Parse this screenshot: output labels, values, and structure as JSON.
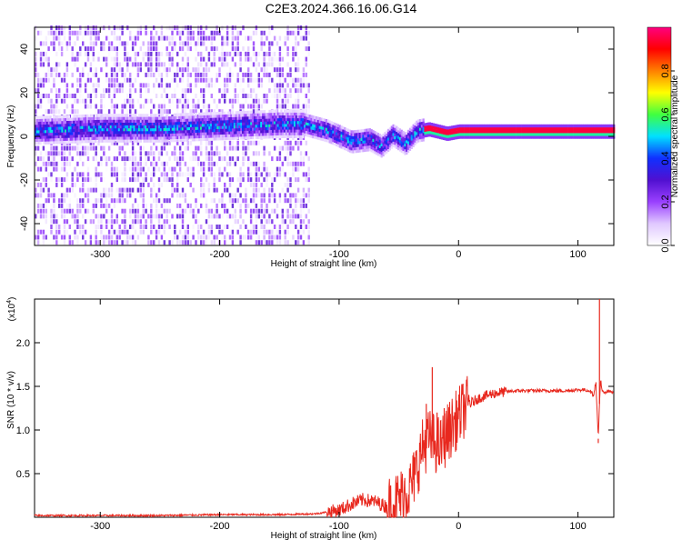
{
  "figure_title": "C2E3.2024.366.16.06.G14",
  "chart_data": [
    {
      "type": "heatmap",
      "title": "C2E3.2024.366.16.06.G14",
      "xlabel": "Height of straight line (km)",
      "ylabel": "Frequency (Hz)",
      "xlim": [
        -355,
        130
      ],
      "ylim": [
        -50,
        50
      ],
      "x_ticks": [
        -300,
        -200,
        -100,
        0,
        100
      ],
      "y_ticks": [
        -40,
        -20,
        0,
        20,
        40
      ],
      "x_tick_labels": [
        "-300",
        "-200",
        "-100",
        "0",
        "100"
      ],
      "y_tick_labels": [
        "-40",
        "-20",
        "0",
        "20",
        "40"
      ],
      "colorbar": {
        "label": "Normalized spectral amplitude",
        "range": [
          0,
          1
        ],
        "ticks": [
          0.0,
          0.2,
          0.4,
          0.6,
          0.8
        ],
        "tick_labels": [
          "0.0",
          "0.2",
          "0.4",
          "0.6",
          "0.8"
        ],
        "colormap": [
          "#ffffff",
          "#e0c8ff",
          "#9a40ff",
          "#5010d0",
          "#1030ff",
          "#00e0ff",
          "#40ff40",
          "#ffff00",
          "#ff8000",
          "#ff0000",
          "#ff0080"
        ]
      },
      "ridge": {
        "description": "main spectral ridge",
        "points": [
          {
            "x": -355,
            "y": 2
          },
          {
            "x": -300,
            "y": 3
          },
          {
            "x": -250,
            "y": 3
          },
          {
            "x": -200,
            "y": 4
          },
          {
            "x": -150,
            "y": 5
          },
          {
            "x": -130,
            "y": 5
          },
          {
            "x": -110,
            "y": 2
          },
          {
            "x": -90,
            "y": -3
          },
          {
            "x": -75,
            "y": -2
          },
          {
            "x": -65,
            "y": -5
          },
          {
            "x": -55,
            "y": 0
          },
          {
            "x": -45,
            "y": -4
          },
          {
            "x": -35,
            "y": 2
          },
          {
            "x": -25,
            "y": 3
          },
          {
            "x": -10,
            "y": 1
          },
          {
            "x": 0,
            "y": 2
          },
          {
            "x": 20,
            "y": 2
          },
          {
            "x": 60,
            "y": 2
          },
          {
            "x": 90,
            "y": 2
          },
          {
            "x": 110,
            "y": 2
          },
          {
            "x": 130,
            "y": 2
          }
        ]
      },
      "noise_region_x": [
        -355,
        -125
      ]
    },
    {
      "type": "line",
      "xlabel": "Height of straight line (km)",
      "ylabel": "SNR (10 * v/v)",
      "y_multiplier_label": "(x10",
      "y_multiplier_exp": "4",
      "xlim": [
        -355,
        130
      ],
      "ylim": [
        0,
        2.5
      ],
      "x_ticks": [
        -300,
        -200,
        -100,
        0,
        100
      ],
      "y_ticks": [
        0.5,
        1.0,
        1.5,
        2.0
      ],
      "x_tick_labels": [
        "-300",
        "-200",
        "-100",
        "0",
        "100"
      ],
      "y_tick_labels": [
        "0.5",
        "1.0",
        "1.5",
        "2.0"
      ],
      "series": [
        {
          "color": "#e8281e",
          "x": [
            -355,
            -300,
            -250,
            -200,
            -150,
            -120,
            -100,
            -90,
            -80,
            -70,
            -60,
            -50,
            -40,
            -35,
            -30,
            -25,
            -20,
            -15,
            -10,
            -5,
            0,
            5,
            10,
            15,
            20,
            25,
            30,
            35,
            40,
            50,
            60,
            70,
            80,
            90,
            100,
            105,
            110,
            113,
            115,
            117,
            118,
            119,
            120,
            122,
            125,
            130
          ],
          "y": [
            0.02,
            0.02,
            0.02,
            0.03,
            0.03,
            0.04,
            0.08,
            0.15,
            0.2,
            0.18,
            0.12,
            0.2,
            0.35,
            0.55,
            0.8,
            0.9,
            0.85,
            0.8,
            0.95,
            1.05,
            1.15,
            1.25,
            1.3,
            1.35,
            1.38,
            1.4,
            1.42,
            1.43,
            1.44,
            1.45,
            1.45,
            1.45,
            1.45,
            1.45,
            1.46,
            1.46,
            1.45,
            1.4,
            1.55,
            0.9,
            1.3,
            1.6,
            1.45,
            1.42,
            1.44,
            1.44
          ]
        }
      ],
      "spikes": [
        {
          "x": -45,
          "y": 0.45
        },
        {
          "x": -38,
          "y": 0.7
        },
        {
          "x": -30,
          "y": 1.0
        },
        {
          "x": -27,
          "y": 1.3
        },
        {
          "x": -22,
          "y": 1.72
        },
        {
          "x": -18,
          "y": 1.2
        },
        {
          "x": -12,
          "y": 1.25
        },
        {
          "x": -8,
          "y": 1.1
        },
        {
          "x": 118,
          "y": 2.5
        },
        {
          "x": 117,
          "y": 0.85
        }
      ]
    }
  ]
}
